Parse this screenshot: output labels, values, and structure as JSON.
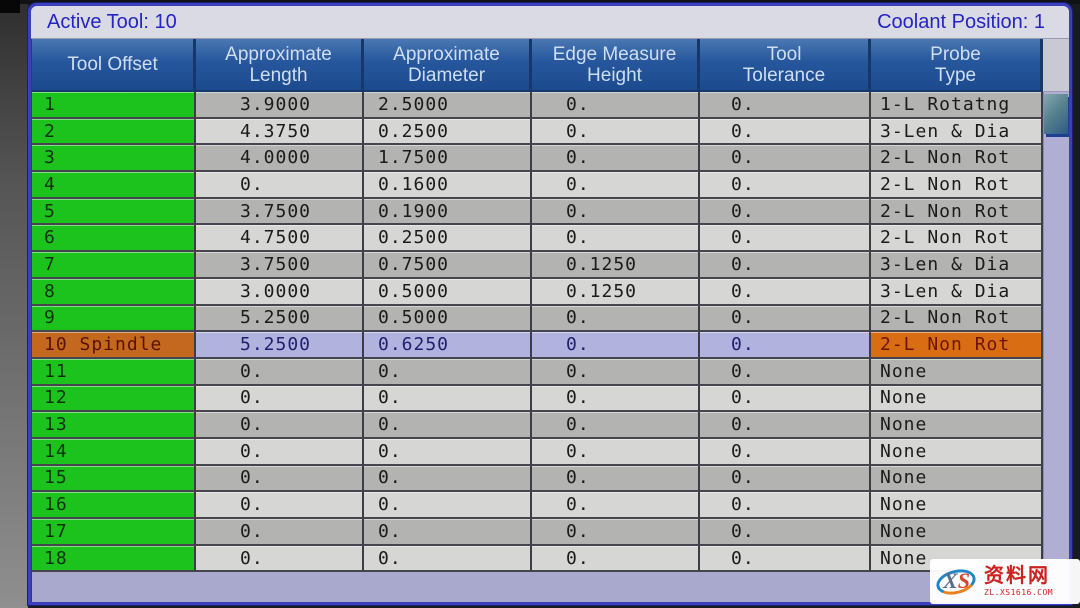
{
  "status_bar": {
    "active_tool_label": "Active Tool: 10",
    "coolant_position_label": "Coolant Position: 1"
  },
  "table": {
    "columns": [
      {
        "line1": "Tool Offset",
        "line2": ""
      },
      {
        "line1": "Approximate",
        "line2": "Length"
      },
      {
        "line1": "Approximate",
        "line2": "Diameter"
      },
      {
        "line1": "Edge Measure",
        "line2": "Height"
      },
      {
        "line1": "Tool",
        "line2": "Tolerance"
      },
      {
        "line1": "Probe",
        "line2": "Type"
      }
    ],
    "rows": [
      {
        "tool": "1",
        "length": "3.9000",
        "diameter": "2.5000",
        "edge": "0.",
        "tolerance": "0.",
        "probe": "1-L Rotatng",
        "selected": false
      },
      {
        "tool": "2",
        "length": "4.3750",
        "diameter": "0.2500",
        "edge": "0.",
        "tolerance": "0.",
        "probe": "3-Len & Dia",
        "selected": false
      },
      {
        "tool": "3",
        "length": "4.0000",
        "diameter": "1.7500",
        "edge": "0.",
        "tolerance": "0.",
        "probe": "2-L Non Rot",
        "selected": false
      },
      {
        "tool": "4",
        "length": "0.",
        "diameter": "0.1600",
        "edge": "0.",
        "tolerance": "0.",
        "probe": "2-L Non Rot",
        "selected": false
      },
      {
        "tool": "5",
        "length": "3.7500",
        "diameter": "0.1900",
        "edge": "0.",
        "tolerance": "0.",
        "probe": "2-L Non Rot",
        "selected": false
      },
      {
        "tool": "6",
        "length": "4.7500",
        "diameter": "0.2500",
        "edge": "0.",
        "tolerance": "0.",
        "probe": "2-L Non Rot",
        "selected": false
      },
      {
        "tool": "7",
        "length": "3.7500",
        "diameter": "0.7500",
        "edge": "0.1250",
        "tolerance": "0.",
        "probe": "3-Len & Dia",
        "selected": false
      },
      {
        "tool": "8",
        "length": "3.0000",
        "diameter": "0.5000",
        "edge": "0.1250",
        "tolerance": "0.",
        "probe": "3-Len & Dia",
        "selected": false
      },
      {
        "tool": "9",
        "length": "5.2500",
        "diameter": "0.5000",
        "edge": "0.",
        "tolerance": "0.",
        "probe": "2-L Non Rot",
        "selected": false
      },
      {
        "tool": "10 Spindle",
        "length": "5.2500",
        "diameter": "0.6250",
        "edge": "0.",
        "tolerance": "0.",
        "probe": "2-L Non Rot",
        "selected": true
      },
      {
        "tool": "11",
        "length": "0.",
        "diameter": "0.",
        "edge": "0.",
        "tolerance": "0.",
        "probe": "None",
        "selected": false
      },
      {
        "tool": "12",
        "length": "0.",
        "diameter": "0.",
        "edge": "0.",
        "tolerance": "0.",
        "probe": "None",
        "selected": false
      },
      {
        "tool": "13",
        "length": "0.",
        "diameter": "0.",
        "edge": "0.",
        "tolerance": "0.",
        "probe": "None",
        "selected": false
      },
      {
        "tool": "14",
        "length": "0.",
        "diameter": "0.",
        "edge": "0.",
        "tolerance": "0.",
        "probe": "None",
        "selected": false
      },
      {
        "tool": "15",
        "length": "0.",
        "diameter": "0.",
        "edge": "0.",
        "tolerance": "0.",
        "probe": "None",
        "selected": false
      },
      {
        "tool": "16",
        "length": "0.",
        "diameter": "0.",
        "edge": "0.",
        "tolerance": "0.",
        "probe": "None",
        "selected": false
      },
      {
        "tool": "17",
        "length": "0.",
        "diameter": "0.",
        "edge": "0.",
        "tolerance": "0.",
        "probe": "None",
        "selected": false
      },
      {
        "tool": "18",
        "length": "0.",
        "diameter": "0.",
        "edge": "0.",
        "tolerance": "0.",
        "probe": "None",
        "selected": false
      }
    ]
  },
  "scrollbar": {
    "position": "top"
  },
  "watermark": {
    "logo_x": "X",
    "logo_s": "S",
    "site_name": "资料网",
    "site_url": "ZL.XS1616.COM"
  },
  "colors": {
    "header_blue": "#26569c",
    "header_text": "#cfdef2",
    "title_text_blue": "#2424c2",
    "titlebar_bg": "#d9dae3",
    "tool_green": "#1dc31d",
    "selected_orange": "#c4671f",
    "selected_probe_orange": "#d86d13",
    "selected_lavender": "#b2b2de",
    "row_dark": "#b3b3b1",
    "row_light": "#d6d6d4",
    "window_border_blue": "#3a3fbd",
    "track_lavender": "#b1aed3",
    "thumb_teal": "#57828f",
    "watermark_red": "#cc2222"
  }
}
